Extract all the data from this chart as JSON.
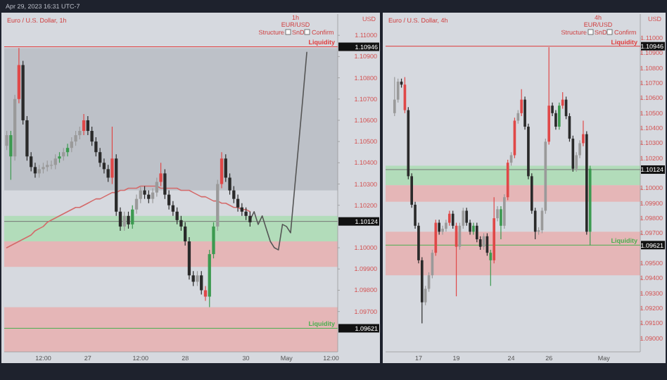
{
  "chart_data": [
    {
      "type": "candlestick",
      "title": "Euro / U.S. Dollar, 1h",
      "ylabel": "USD",
      "annotations": [
        "Apr 29, 2023 16:31 UTC-7",
        "1h",
        "EUR/USD",
        "Structure",
        "SnD",
        "Confirm"
      ],
      "categories": [
        null,
        null,
        null,
        null,
        null,
        null,
        null,
        null,
        null,
        "12:00",
        null,
        null,
        null,
        null,
        null,
        null,
        null,
        null,
        null,
        null,
        "27",
        null,
        null,
        null,
        null,
        null,
        null,
        null,
        null,
        null,
        null,
        null,
        null,
        "12:00",
        null,
        null,
        null,
        null,
        null,
        null,
        null,
        null,
        null,
        null,
        "28",
        null,
        null,
        null,
        null,
        null,
        null,
        null,
        null,
        null,
        null,
        null,
        null,
        null,
        null,
        "30",
        null,
        null,
        null,
        null,
        null,
        null,
        null,
        null,
        null,
        "May",
        null,
        null,
        null,
        null,
        null,
        null,
        null,
        null,
        null,
        null,
        "12:00",
        null
      ],
      "ohlc": [
        [
          1.1048,
          1.1055,
          1.1046,
          1.1053
        ],
        [
          1.1053,
          1.1055,
          1.1032,
          1.1043
        ],
        [
          1.1043,
          1.1072,
          1.1041,
          1.107
        ],
        [
          1.107,
          1.1094,
          1.1068,
          1.1086
        ],
        [
          1.1086,
          1.1088,
          1.1058,
          1.106
        ],
        [
          1.106,
          1.1062,
          1.1041,
          1.1043
        ],
        [
          1.1043,
          1.1045,
          1.1036,
          1.1038
        ],
        [
          1.1038,
          1.104,
          1.1033,
          1.1035
        ],
        [
          1.1035,
          1.1039,
          1.1033,
          1.1037
        ],
        [
          1.1037,
          1.104,
          1.1035,
          1.1038
        ],
        [
          1.1038,
          1.1041,
          1.1036,
          1.1039
        ],
        [
          1.1039,
          1.1041,
          1.1037,
          1.1039
        ],
        [
          1.1039,
          1.1044,
          1.1037,
          1.1042
        ],
        [
          1.1042,
          1.1045,
          1.104,
          1.1043
        ],
        [
          1.1043,
          1.1047,
          1.1041,
          1.1045
        ],
        [
          1.1045,
          1.1049,
          1.1043,
          1.1047
        ],
        [
          1.1047,
          1.1052,
          1.1045,
          1.105
        ],
        [
          1.105,
          1.1055,
          1.1048,
          1.1053
        ],
        [
          1.1053,
          1.1057,
          1.1051,
          1.1055
        ],
        [
          1.1055,
          1.1063,
          1.1053,
          1.106
        ],
        [
          1.106,
          1.1062,
          1.1053,
          1.1055
        ],
        [
          1.1055,
          1.1057,
          1.1048,
          1.105
        ],
        [
          1.105,
          1.1052,
          1.1043,
          1.1045
        ],
        [
          1.1045,
          1.1047,
          1.1038,
          1.104
        ],
        [
          1.104,
          1.1042,
          1.1035,
          1.1037
        ],
        [
          1.1037,
          1.1039,
          1.1031,
          1.1033
        ],
        [
          1.1033,
          1.1057,
          1.103,
          1.1042
        ],
        [
          1.1042,
          1.1044,
          1.1015,
          1.1017
        ],
        [
          1.1017,
          1.1019,
          1.1008,
          1.101
        ],
        [
          1.101,
          1.1017,
          1.1008,
          1.1015
        ],
        [
          1.1015,
          1.1017,
          1.1009,
          1.1011
        ],
        [
          1.1011,
          1.102,
          1.1009,
          1.1018
        ],
        [
          1.1018,
          1.1025,
          1.1016,
          1.1023
        ],
        [
          1.1023,
          1.1029,
          1.1021,
          1.1027
        ],
        [
          1.1027,
          1.1029,
          1.1023,
          1.1025
        ],
        [
          1.1025,
          1.1027,
          1.1021,
          1.1023
        ],
        [
          1.1023,
          1.1028,
          1.1021,
          1.1026
        ],
        [
          1.1026,
          1.1033,
          1.1024,
          1.1031
        ],
        [
          1.1031,
          1.104,
          1.1029,
          1.1035
        ],
        [
          1.1035,
          1.1037,
          1.1023,
          1.1025
        ],
        [
          1.1025,
          1.1027,
          1.1018,
          1.102
        ],
        [
          1.102,
          1.1022,
          1.1015,
          1.1017
        ],
        [
          1.1017,
          1.1019,
          1.1011,
          1.1013
        ],
        [
          1.1013,
          1.1015,
          1.1008,
          1.101
        ],
        [
          1.101,
          1.1012,
          1.1001,
          1.1003
        ],
        [
          1.1003,
          1.1005,
          1.0985,
          1.0987
        ],
        [
          1.0987,
          1.0989,
          1.0982,
          1.0984
        ],
        [
          1.0984,
          1.0989,
          1.0982,
          1.0987
        ],
        [
          1.0987,
          1.0989,
          1.0978,
          1.098
        ],
        [
          1.098,
          1.0982,
          1.0975,
          1.0977
        ],
        [
          1.0977,
          1.0999,
          1.0972,
          1.0997
        ],
        [
          1.0997,
          1.1012,
          1.0995,
          1.101
        ],
        [
          1.101,
          1.1032,
          1.1008,
          1.103
        ],
        [
          1.103,
          1.1045,
          1.1028,
          1.1042
        ],
        [
          1.1042,
          1.1044,
          1.1031,
          1.1033
        ],
        [
          1.1033,
          1.1035,
          1.1025,
          1.1027
        ],
        [
          1.1027,
          1.1029,
          1.1021,
          1.1023
        ],
        [
          1.1023,
          1.1025,
          1.1017,
          1.1019
        ],
        [
          1.1019,
          1.1021,
          1.1015,
          1.1017
        ],
        [
          1.1017,
          1.1019,
          1.1013,
          1.1015
        ],
        [
          1.1015,
          1.1017,
          1.101,
          1.1012
        ],
        null,
        null,
        null,
        null,
        null,
        null,
        null,
        null,
        null,
        null,
        null,
        null,
        null,
        null,
        null,
        null,
        null,
        null,
        null,
        null,
        null
      ],
      "colors": [
        "#9a9a9a",
        "#3c9a50",
        "#9a9a9a",
        "#e04848",
        "#2a2a2a",
        "#2a2a2a",
        "#2a2a2a",
        "#2a2a2a",
        "#9a9a9a",
        "#9a9a9a",
        "#9a9a9a",
        "#9a9a9a",
        "#9a9a9a",
        "#3c9a50",
        "#9a9a9a",
        "#3c9a50",
        "#9a9a9a",
        "#9a9a9a",
        "#9a9a9a",
        "#e04848",
        "#2a2a2a",
        "#2a2a2a",
        "#2a2a2a",
        "#2a2a2a",
        "#2a2a2a",
        "#2a2a2a",
        "#e04848",
        "#2a2a2a",
        "#2a2a2a",
        "#9a9a9a",
        "#2a2a2a",
        "#3c9a50",
        "#9a9a9a",
        "#9a9a9a",
        "#2a2a2a",
        "#2a2a2a",
        "#9a9a9a",
        "#9a9a9a",
        "#e04848",
        "#2a2a2a",
        "#2a2a2a",
        "#2a2a2a",
        "#2a2a2a",
        "#2a2a2a",
        "#2a2a2a",
        "#2a2a2a",
        "#2a2a2a",
        "#9a9a9a",
        "#2a2a2a",
        "#e04848",
        "#3c9a50",
        "#3c9a50",
        "#9a9a9a",
        "#e04848",
        "#2a2a2a",
        "#2a2a2a",
        "#2a2a2a",
        "#2a2a2a",
        "#2a2a2a",
        "#2a2a2a",
        "#2a2a2a",
        null,
        null,
        null,
        null,
        null,
        null,
        null,
        null,
        null,
        null,
        null,
        null,
        null,
        null,
        null,
        null,
        null,
        null,
        null,
        null,
        null
      ],
      "series": [
        {
          "type": "line",
          "color": "#d46a6a",
          "values": [
            1.1,
            1.1001,
            1.1002,
            1.1003,
            1.1004,
            1.1005,
            1.1006,
            1.1008,
            1.1009,
            1.101,
            1.1012,
            1.1013,
            1.1014,
            1.1015,
            1.1016,
            1.1017,
            1.1018,
            1.1019,
            1.1019,
            1.102,
            1.1021,
            1.1022,
            1.1023,
            1.1023,
            1.1024,
            1.1025,
            1.1026,
            1.1026,
            1.1027,
            1.1027,
            1.1028,
            1.1028,
            1.1028,
            1.1029,
            1.1029,
            1.1029,
            1.1029,
            1.1029,
            1.1028,
            1.1028,
            1.1028,
            1.1028,
            1.1028,
            1.1027,
            1.1027,
            1.1027,
            1.1026,
            1.1025,
            1.1024,
            1.1024,
            1.1023,
            1.1022,
            1.1022,
            1.1021,
            1.1021,
            1.102,
            1.1019,
            1.1019,
            1.1018,
            1.1018,
            1.1017,
            null,
            null,
            null,
            null,
            null,
            null,
            null,
            null,
            null,
            null,
            null,
            null,
            null,
            null,
            null,
            null,
            null,
            null,
            null,
            null,
            null
          ]
        },
        {
          "type": "line",
          "color": "#555555",
          "values": [
            null,
            null,
            null,
            null,
            null,
            null,
            null,
            null,
            null,
            null,
            null,
            null,
            null,
            null,
            null,
            null,
            null,
            null,
            null,
            null,
            null,
            null,
            null,
            null,
            null,
            null,
            null,
            null,
            null,
            null,
            null,
            null,
            null,
            null,
            null,
            null,
            null,
            null,
            null,
            null,
            null,
            null,
            null,
            null,
            null,
            null,
            null,
            null,
            null,
            null,
            null,
            null,
            null,
            null,
            null,
            null,
            null,
            null,
            null,
            null,
            1.1013,
            1.1017,
            1.1011,
            1.1015,
            1.1009,
            1.1003,
            1.1,
            1.0999,
            1.1011,
            1.101,
            1.1007,
            1.1028,
            1.1049,
            1.107,
            1.1092,
            null,
            null,
            null,
            null,
            null,
            null,
            null
          ]
        }
      ],
      "ylim": [
        1.0951,
        1.111
      ],
      "yticks": [
        1.09621,
        {
          "value": 1.097,
          "label": "1.09700"
        },
        {
          "value": 1.098,
          "label": "1.09800"
        },
        {
          "value": 1.099,
          "label": "1.09900"
        },
        {
          "value": 1.1,
          "label": "1.10000"
        },
        1.10124,
        {
          "value": 1.102,
          "label": "1.10200"
        },
        {
          "value": 1.103,
          "label": "1.10300"
        },
        {
          "value": 1.104,
          "label": "1.10400"
        },
        {
          "value": 1.105,
          "label": "1.10500"
        },
        {
          "value": 1.106,
          "label": "1.10600"
        },
        {
          "value": 1.107,
          "label": "1.10700"
        },
        {
          "value": 1.108,
          "label": "1.10800"
        },
        {
          "value": 1.109,
          "label": "1.10900"
        },
        1.10946,
        {
          "value": 1.11,
          "label": "1.11000"
        }
      ],
      "bands": [
        {
          "axis": "y",
          "from": 1.1027,
          "to": 1.1094,
          "color": "#b4b8c0"
        },
        {
          "axis": "y",
          "from": 1.1003,
          "to": 1.1015,
          "color": "#a6dcae"
        },
        {
          "axis": "y",
          "from": 1.0991,
          "to": 1.1003,
          "color": "#e9a9a9"
        },
        {
          "axis": "y",
          "from": 1.0951,
          "to": 1.0972,
          "color": "#e9a9a9"
        }
      ],
      "ref_lines": [
        {
          "axis": "y",
          "value": 1.10946,
          "label": "Liquidity",
          "color": "#e03c3c"
        },
        {
          "axis": "y",
          "value": 1.10124,
          "color": "#777777"
        },
        {
          "axis": "y",
          "value": 1.09621,
          "label": "Liquidity",
          "color": "#4caf50"
        }
      ]
    },
    {
      "type": "candlestick",
      "title": "Euro / U.S. Dollar, 4h",
      "ylabel": "USD",
      "annotations": [
        "4h",
        "EUR/USD",
        "Structure",
        "SnD",
        "Confirm"
      ],
      "categories": [
        null,
        null,
        null,
        null,
        null,
        null,
        null,
        null,
        null,
        "17",
        null,
        null,
        null,
        null,
        null,
        null,
        null,
        null,
        null,
        null,
        "19",
        null,
        null,
        null,
        null,
        null,
        null,
        null,
        null,
        null,
        null,
        null,
        null,
        null,
        null,
        null,
        "24",
        null,
        null,
        null,
        null,
        null,
        null,
        null,
        null,
        null,
        null,
        "26",
        null,
        null,
        null,
        null,
        null,
        null,
        null,
        null,
        null,
        null,
        null,
        null,
        null,
        null,
        null,
        "May",
        null,
        null,
        null,
        null,
        null,
        null,
        null,
        null,
        null,
        null
      ],
      "ohlc": [
        null,
        null,
        [
          1.105,
          1.1074,
          1.1048,
          1.1059
        ],
        [
          1.1059,
          1.1073,
          1.1057,
          1.1071
        ],
        [
          1.1071,
          1.1073,
          1.1067,
          1.1069
        ],
        [
          1.1069,
          1.1074,
          1.105,
          1.1052
        ],
        [
          1.1052,
          1.1054,
          1.1006,
          1.1008
        ],
        [
          1.1008,
          1.101,
          1.0987,
          1.0989
        ],
        [
          1.0989,
          1.0991,
          1.0973,
          1.0975
        ],
        [
          1.0975,
          1.0977,
          1.095,
          1.0952
        ],
        [
          1.0952,
          1.0954,
          1.091,
          1.0924
        ],
        [
          1.0924,
          1.0935,
          1.0922,
          1.0933
        ],
        [
          1.0933,
          1.0944,
          1.0931,
          1.0942
        ],
        [
          1.0942,
          1.0959,
          1.094,
          1.0957
        ],
        [
          1.0957,
          1.0979,
          1.0955,
          1.0977
        ],
        [
          1.0977,
          1.0979,
          1.0969,
          1.0971
        ],
        [
          1.0971,
          1.0975,
          1.0969,
          1.0973
        ],
        [
          1.0973,
          1.0979,
          1.0971,
          1.0977
        ],
        [
          1.0977,
          1.0985,
          1.0975,
          1.0983
        ],
        [
          1.0983,
          1.0985,
          1.0973,
          1.0975
        ],
        [
          1.0975,
          1.0977,
          1.0928,
          1.0961
        ],
        [
          1.0961,
          1.0977,
          1.0959,
          1.0975
        ],
        [
          1.0975,
          1.0987,
          1.0973,
          1.0985
        ],
        [
          1.0985,
          1.0987,
          1.0975,
          1.0977
        ],
        [
          1.0977,
          1.0979,
          1.0969,
          1.0971
        ],
        [
          1.0971,
          1.0977,
          1.0969,
          1.0975
        ],
        [
          1.0975,
          1.0977,
          1.0964,
          1.0966
        ],
        [
          1.0966,
          1.0968,
          1.0959,
          1.0961
        ],
        [
          1.0961,
          1.097,
          1.0959,
          1.0968
        ],
        [
          1.0968,
          1.097,
          1.0955,
          1.0957
        ],
        [
          1.0957,
          1.0959,
          1.0935,
          1.0952
        ],
        [
          1.0952,
          1.0994,
          1.095,
          1.098
        ],
        [
          1.098,
          1.0988,
          1.0978,
          1.0986
        ],
        [
          1.0986,
          1.0988,
          1.0966,
          1.0975
        ],
        [
          1.0975,
          1.0996,
          1.0973,
          1.0994
        ],
        [
          1.0994,
          1.1019,
          1.0992,
          1.1017
        ],
        [
          1.1017,
          1.1024,
          1.1015,
          1.1022
        ],
        [
          1.1022,
          1.1047,
          1.102,
          1.1045
        ],
        [
          1.1045,
          1.1052,
          1.1043,
          1.105
        ],
        [
          1.105,
          1.1066,
          1.1048,
          1.1059
        ],
        [
          1.1059,
          1.1061,
          1.1039,
          1.1041
        ],
        [
          1.1041,
          1.1043,
          1.1006,
          1.1008
        ],
        [
          1.1008,
          1.101,
          1.0983,
          1.0985
        ],
        [
          1.0985,
          1.0987,
          1.0966,
          1.0971
        ],
        [
          1.0971,
          1.0974,
          1.0969,
          1.0972
        ],
        [
          1.0972,
          1.0987,
          1.097,
          1.0985
        ],
        [
          1.0985,
          1.1033,
          1.0983,
          1.1031
        ],
        [
          1.1031,
          1.1094,
          1.1029,
          1.1055
        ],
        [
          1.1055,
          1.1057,
          1.1048,
          1.105
        ],
        [
          1.105,
          1.1052,
          1.1039,
          1.1041
        ],
        [
          1.1041,
          1.1057,
          1.1039,
          1.1055
        ],
        [
          1.1055,
          1.1064,
          1.1053,
          1.1059
        ],
        [
          1.1059,
          1.1061,
          1.1046,
          1.1048
        ],
        [
          1.1048,
          1.105,
          1.1031,
          1.1033
        ],
        [
          1.1033,
          1.1035,
          1.1011,
          1.1013
        ],
        [
          1.1013,
          1.1024,
          1.1011,
          1.1022
        ],
        [
          1.1022,
          1.1032,
          1.102,
          1.103
        ],
        [
          1.103,
          1.1045,
          1.1028,
          1.1036
        ],
        [
          1.1036,
          1.1038,
          1.0969,
          1.0971
        ],
        [
          1.0971,
          1.1015,
          1.0962,
          1.1013
        ],
        null,
        null,
        null,
        null,
        null,
        null,
        null,
        null,
        null,
        null,
        null,
        null,
        null,
        null
      ],
      "colors": [
        null,
        null,
        "#9a9a9a",
        "#9a9a9a",
        "#2a2a2a",
        "#e04848",
        "#2a2a2a",
        "#2a2a2a",
        "#2a2a2a",
        "#2a2a2a",
        "#2a2a2a",
        "#9a9a9a",
        "#9a9a9a",
        "#9a9a9a",
        "#e04848",
        "#2a2a2a",
        "#9a9a9a",
        "#9a9a9a",
        "#e04848",
        "#2a2a2a",
        "#e04848",
        "#9a9a9a",
        "#9a9a9a",
        "#2a2a2a",
        "#2a2a2a",
        "#3c9a50",
        "#2a2a2a",
        "#2a2a2a",
        "#9a9a9a",
        "#2a2a2a",
        "#3c9a50",
        "#e04848",
        "#9a9a9a",
        "#3c9a50",
        "#9a9a9a",
        "#e04848",
        "#9a9a9a",
        "#e04848",
        "#9a9a9a",
        "#e04848",
        "#2a2a2a",
        "#2a2a2a",
        "#2a2a2a",
        "#2a2a2a",
        "#9a9a9a",
        "#9a9a9a",
        "#9a9a9a",
        "#e04848",
        "#2a2a2a",
        "#2a2a2a",
        "#3c9a50",
        "#e04848",
        "#2a2a2a",
        "#2a2a2a",
        "#2a2a2a",
        "#9a9a9a",
        "#9a9a9a",
        "#e04848",
        "#2a2a2a",
        "#3c9a50",
        null,
        null,
        null,
        null,
        null,
        null,
        null,
        null,
        null,
        null,
        null,
        null,
        null,
        null
      ],
      "ylim": [
        1.0891,
        1.1116
      ],
      "yticks": [
        {
          "value": 1.09,
          "label": "1.09000"
        },
        {
          "value": 1.091,
          "label": "1.09100"
        },
        {
          "value": 1.092,
          "label": "1.09200"
        },
        {
          "value": 1.093,
          "label": "1.09300"
        },
        {
          "value": 1.094,
          "label": "1.09400"
        },
        {
          "value": 1.095,
          "label": "1.09500"
        },
        1.09621,
        {
          "value": 1.097,
          "label": "1.09700"
        },
        {
          "value": 1.098,
          "label": "1.09800"
        },
        {
          "value": 1.099,
          "label": "1.09900"
        },
        {
          "value": 1.1,
          "label": "1.10000"
        },
        1.10124,
        {
          "value": 1.102,
          "label": "1.10200"
        },
        {
          "value": 1.103,
          "label": "1.10300"
        },
        {
          "value": 1.104,
          "label": "1.10400"
        },
        {
          "value": 1.105,
          "label": "1.10500"
        },
        {
          "value": 1.106,
          "label": "1.10600"
        },
        {
          "value": 1.107,
          "label": "1.10700"
        },
        {
          "value": 1.108,
          "label": "1.10800"
        },
        {
          "value": 1.109,
          "label": "1.10900"
        },
        1.10946,
        {
          "value": 1.11,
          "label": "1.11000"
        }
      ],
      "bands": [
        {
          "axis": "y",
          "from": 1.1002,
          "to": 1.1015,
          "color": "#a6dcae"
        },
        {
          "axis": "y",
          "from": 1.0991,
          "to": 1.1002,
          "color": "#e9a9a9"
        },
        {
          "axis": "y",
          "from": 1.0942,
          "to": 1.0971,
          "color": "#e9a9a9"
        }
      ],
      "ref_lines": [
        {
          "axis": "y",
          "value": 1.10946,
          "label": "Liquidity",
          "color": "#e03c3c"
        },
        {
          "axis": "y",
          "value": 1.10124,
          "color": "#777777"
        },
        {
          "axis": "y",
          "value": 1.09621,
          "label": "Liquidity",
          "color": "#4caf50"
        }
      ]
    }
  ]
}
